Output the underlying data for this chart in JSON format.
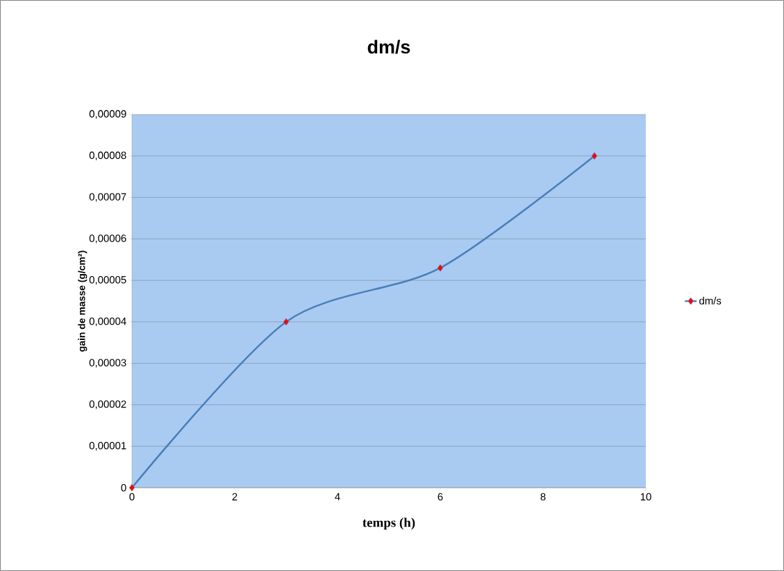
{
  "chart_data": {
    "type": "line",
    "title": "dm/s",
    "xlabel": "temps (h)",
    "ylabel": "gain de masse (g/cm²)",
    "x": [
      0,
      3,
      6,
      9
    ],
    "series": [
      {
        "name": "dm/s",
        "color": "#4a7ebb",
        "values": [
          0,
          4e-05,
          5.3e-05,
          8e-05
        ]
      }
    ],
    "xlim": [
      0,
      10
    ],
    "xticks": [
      0,
      2,
      4,
      6,
      8,
      10
    ],
    "ylim": [
      0,
      9e-05
    ],
    "yticks": [
      0,
      {
        "value": 1e-05,
        "label": "0,00001"
      },
      {
        "value": 2e-05,
        "label": "0,00002"
      },
      {
        "value": 3e-05,
        "label": "0,00003"
      },
      {
        "value": 4e-05,
        "label": "0,00004"
      },
      {
        "value": 5e-05,
        "label": "0,00005"
      },
      {
        "value": 6e-05,
        "label": "0,00006"
      },
      {
        "value": 7e-05,
        "label": "0,00007"
      },
      {
        "value": 8e-05,
        "label": "0,00008"
      },
      {
        "value": 9e-05,
        "label": "0,00009"
      }
    ],
    "grid": "y",
    "legend": "right",
    "marker": "diamond",
    "line_style": "solid"
  }
}
